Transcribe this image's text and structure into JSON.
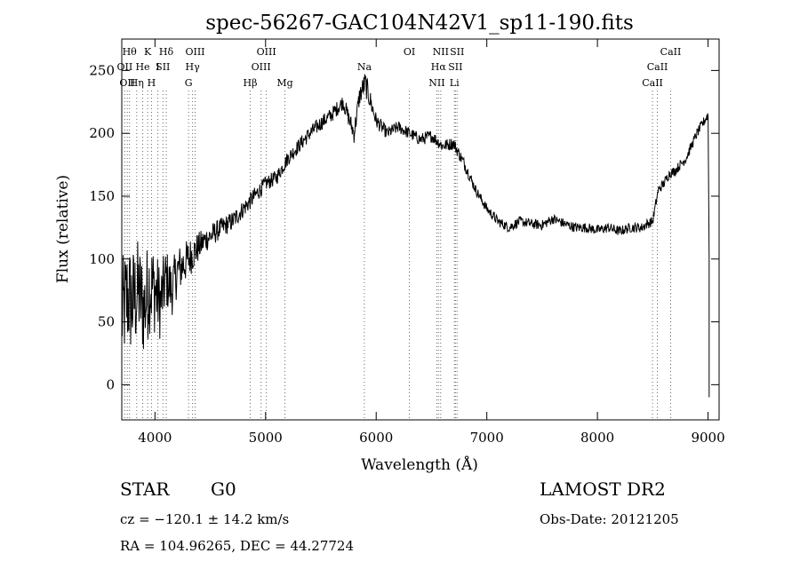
{
  "chart_data": {
    "type": "line",
    "title": "spec-56267-GAC104N42V1_sp11-190.fits",
    "xlabel": "Wavelength (Å)",
    "ylabel": "Flux (relative)",
    "xlim": [
      3700,
      9100
    ],
    "ylim": [
      -28,
      275
    ],
    "xticks": [
      4000,
      5000,
      6000,
      7000,
      8000,
      9000
    ],
    "yticks": [
      0,
      50,
      100,
      150,
      200,
      250
    ],
    "grid": false,
    "series": [
      {
        "x": [
          3700,
          3750,
          3800,
          3850,
          3900,
          3950,
          4000,
          4050,
          4100,
          4150,
          4200,
          4250,
          4300,
          4350,
          4400,
          4450,
          4500,
          4600,
          4700,
          4800,
          4850,
          4900,
          5000,
          5100,
          5200,
          5300,
          5400,
          5500,
          5600,
          5700,
          5800,
          5850,
          5900,
          5950,
          6000,
          6100,
          6200,
          6300,
          6400,
          6500,
          6600,
          6700,
          6800,
          6900,
          7000,
          7100,
          7200,
          7300,
          7400,
          7500,
          7600,
          7700,
          7800,
          7900,
          8000,
          8100,
          8200,
          8300,
          8400,
          8450,
          8500,
          8550,
          8600,
          8650,
          8700,
          8800,
          8900,
          9000,
          9010
        ],
        "y": [
          55,
          70,
          65,
          75,
          60,
          80,
          75,
          65,
          85,
          75,
          90,
          95,
          100,
          105,
          110,
          115,
          118,
          125,
          130,
          140,
          145,
          150,
          160,
          165,
          180,
          190,
          200,
          208,
          215,
          225,
          200,
          230,
          240,
          225,
          210,
          200,
          205,
          200,
          195,
          198,
          190,
          192,
          175,
          155,
          140,
          130,
          125,
          130,
          128,
          127,
          132,
          128,
          125,
          125,
          123,
          125,
          122,
          125,
          125,
          128,
          130,
          155,
          160,
          168,
          170,
          180,
          200,
          215,
          100
        ],
        "noise": [
          45,
          45,
          45,
          42,
          40,
          40,
          35,
          30,
          25,
          22,
          20,
          18,
          16,
          14,
          12,
          10,
          10,
          8,
          8,
          7,
          7,
          7,
          6,
          6,
          6,
          6,
          6,
          6,
          6,
          6,
          8,
          8,
          10,
          8,
          6,
          5,
          5,
          5,
          5,
          5,
          5,
          5,
          5,
          4,
          4,
          4,
          4,
          4,
          4,
          4,
          4,
          4,
          4,
          4,
          4,
          4,
          4,
          4,
          4,
          4,
          4,
          4,
          4,
          4,
          4,
          4,
          4,
          4,
          0
        ]
      }
    ],
    "lines": [
      {
        "wl": 3727,
        "row": 1,
        "label": "OII"
      },
      {
        "wl": 3750,
        "row": 2,
        "label": "OII"
      },
      {
        "wl": 3770,
        "row": 0,
        "label": "Hθ"
      },
      {
        "wl": 3835,
        "row": 2,
        "label": "Hη"
      },
      {
        "wl": 3889,
        "row": 1,
        "label": "He"
      },
      {
        "wl": 3934,
        "row": 0,
        "label": "K"
      },
      {
        "wl": 3969,
        "row": 2,
        "label": "H"
      },
      {
        "wl": 4026,
        "row": 1,
        "label": "I"
      },
      {
        "wl": 4072,
        "row": 1,
        "label": "SII"
      },
      {
        "wl": 4102,
        "row": 0,
        "label": "Hδ"
      },
      {
        "wl": 4304,
        "row": 2,
        "label": "G"
      },
      {
        "wl": 4340,
        "row": 1,
        "label": "Hγ"
      },
      {
        "wl": 4363,
        "row": 0,
        "label": "OIII"
      },
      {
        "wl": 4861,
        "row": 2,
        "label": "Hβ"
      },
      {
        "wl": 4959,
        "row": 1,
        "label": "OIII"
      },
      {
        "wl": 5007,
        "row": 0,
        "label": "OIII"
      },
      {
        "wl": 5175,
        "row": 2,
        "label": "Mg"
      },
      {
        "wl": 5893,
        "row": 1,
        "label": "Na"
      },
      {
        "wl": 6300,
        "row": 0,
        "label": "OI"
      },
      {
        "wl": 6548,
        "row": 2,
        "label": "NII"
      },
      {
        "wl": 6563,
        "row": 1,
        "label": "Hα"
      },
      {
        "wl": 6583,
        "row": 0,
        "label": "NII"
      },
      {
        "wl": 6707,
        "row": 2,
        "label": "Li"
      },
      {
        "wl": 6716,
        "row": 1,
        "label": "SII"
      },
      {
        "wl": 6731,
        "row": 0,
        "label": "SII"
      },
      {
        "wl": 8498,
        "row": 2,
        "label": "CaII"
      },
      {
        "wl": 8542,
        "row": 1,
        "label": "CaII"
      },
      {
        "wl": 8662,
        "row": 0,
        "label": "CaII"
      }
    ]
  },
  "info": {
    "class": "STAR",
    "subclass": "G0",
    "survey": "LAMOST DR2",
    "cz": "cz = −120.1 ± 14.2 km/s",
    "obs_date": "Obs-Date: 20121205",
    "radec": "RA = 104.96265, DEC =  44.27724"
  }
}
